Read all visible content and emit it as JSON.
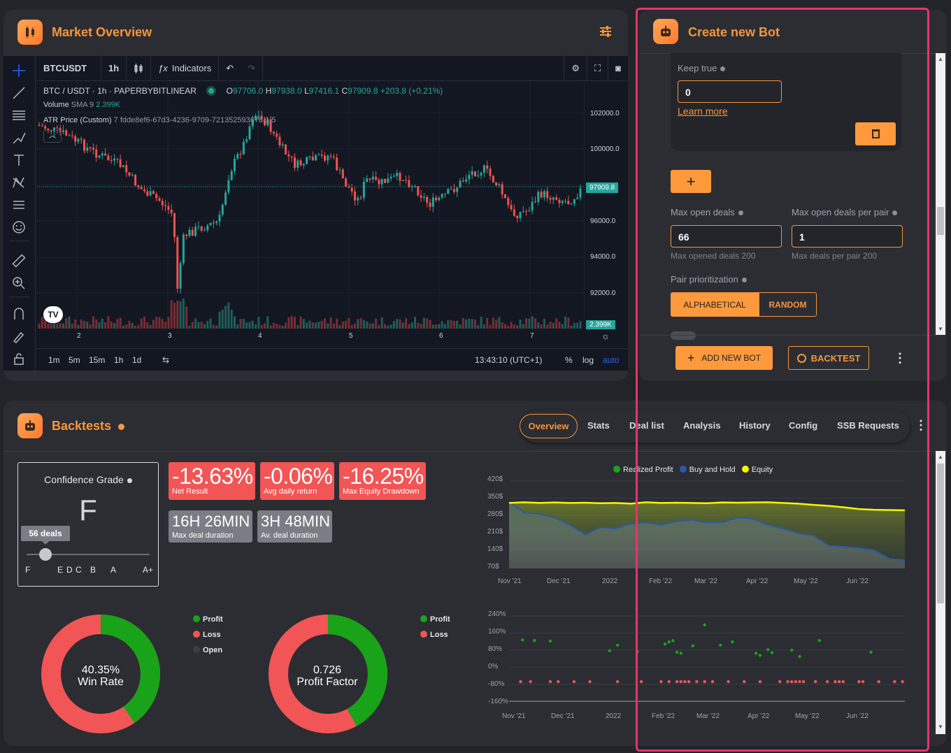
{
  "market": {
    "title": "Market Overview",
    "symbol": "BTCUSDT",
    "interval": "1h",
    "indicators": "Indicators",
    "legend_pair": "BTC / USDT · 1h · PAPERBYBITLINEAR",
    "o": "97706.0",
    "h": "97938.0",
    "l": "97416.1",
    "c": "97909.8",
    "chg": "+203.8 (+0.21%)",
    "volume_label": "Volume",
    "volume_ind": "SMA 9",
    "volume_val": "2.399K",
    "atr": "ATR Price (Custom)",
    "atr_params": "7 fdde8ef6-67d3-4236-9709-721352593678 1.5",
    "price_ticks": [
      "102000.0",
      "100000.0",
      "96000.0",
      "94000.0",
      "92000.0"
    ],
    "last_price": "97909.8",
    "vol_badge": "2.399K",
    "x_ticks": [
      "2",
      "3",
      "4",
      "5",
      "6",
      "7"
    ],
    "timeframes": [
      "1m",
      "5m",
      "15m",
      "1h",
      "1d"
    ],
    "clock": "13:43:10 (UTC+1)",
    "pct": "%",
    "log": "log",
    "auto": "auto"
  },
  "bot": {
    "title": "Create new Bot",
    "keep_true_label": "Keep true",
    "keep_true_value": "0",
    "learn_more": "Learn more",
    "max_open_deals_label": "Max open deals",
    "max_open_deals": "66",
    "max_opened_hint": "Max opened deals 200",
    "max_per_pair_label": "Max open deals per pair",
    "max_per_pair": "1",
    "max_pair_hint": "Max deals per pair 200",
    "pair_prio_label": "Pair prioritization",
    "prio_a": "ALPHABETICAL",
    "prio_b": "RANDOM",
    "add_new_bot": "ADD NEW BOT",
    "backtest": "BACKTEST",
    "plus": "+"
  },
  "backtests": {
    "title": "Backtests",
    "tabs": [
      "Overview",
      "Stats",
      "Deal list",
      "Analysis",
      "History",
      "Config",
      "SSB Requests"
    ],
    "confidence_title": "Confidence Grade",
    "grade": "F",
    "deals_badge": "56 deals",
    "grade_scale": [
      "F",
      "E",
      "D",
      "C",
      "B",
      "A",
      "A+"
    ],
    "net_result": "-13.63%",
    "net_result_label": "Net Result",
    "avg_daily": "-0.06%",
    "avg_daily_label": "Avg daily return",
    "max_dd": "-16.25%",
    "max_dd_label": "Max Equity Drawdown",
    "max_dur": "16H 26MIN",
    "max_dur_label": "Max deal duration",
    "av_dur": "3H 48MIN",
    "av_dur_label": "Av. deal duration",
    "win_rate": "40.35%",
    "win_rate_label": "Win Rate",
    "profit_factor": "0.726",
    "profit_factor_label": "Profit Factor",
    "legend1": [
      "Profit",
      "Loss",
      "Open"
    ],
    "legend2": [
      "Profit",
      "Loss"
    ]
  },
  "colors": {
    "accent": "#ff9a3c",
    "profit": "#18a318",
    "loss": "#f25555",
    "equity": "#f5f500",
    "buyhold": "#2a5aa8"
  },
  "chart_data": [
    {
      "type": "area",
      "legend": [
        "Realized Profit",
        "Buy and Hold",
        "Equity"
      ],
      "y_ticks": [
        "420$",
        "350$",
        "280$",
        "210$",
        "140$",
        "70$"
      ],
      "x_ticks": [
        "Nov '21",
        "Dec '21",
        "2022",
        "Feb '22",
        "Mar '22",
        "Apr '22",
        "May '22",
        "Jun '22"
      ],
      "ylim": [
        70,
        420
      ],
      "series": [
        {
          "name": "Equity",
          "values": [
            330,
            333,
            330,
            332,
            330,
            331,
            329,
            330,
            327,
            333,
            330,
            331,
            330,
            329,
            332,
            331,
            332,
            333,
            330,
            327,
            322,
            318,
            312,
            305,
            302,
            301,
            300
          ]
        },
        {
          "name": "Buy and Hold",
          "values": [
            335,
            290,
            285,
            270,
            240,
            200,
            230,
            225,
            245,
            250,
            240,
            255,
            260,
            250,
            250,
            270,
            265,
            240,
            225,
            205,
            195,
            155,
            150,
            145,
            135,
            100,
            95
          ]
        }
      ]
    },
    {
      "type": "scatter",
      "y_ticks": [
        "240%",
        "160%",
        "80%",
        "0%",
        "-80%",
        "-160%"
      ],
      "x_ticks": [
        "Nov '21",
        "Dec '21",
        "2022",
        "Feb '22",
        "Mar '22",
        "Apr '22",
        "May '22",
        "Jun '22"
      ],
      "ylim": [
        -160,
        240
      ],
      "profit_points": [
        [
          0.02,
          128
        ],
        [
          0.05,
          125
        ],
        [
          0.09,
          122
        ],
        [
          0.24,
          77
        ],
        [
          0.26,
          103
        ],
        [
          0.31,
          73
        ],
        [
          0.38,
          108
        ],
        [
          0.39,
          118
        ],
        [
          0.4,
          124
        ],
        [
          0.41,
          70
        ],
        [
          0.42,
          65
        ],
        [
          0.45,
          100
        ],
        [
          0.48,
          198
        ],
        [
          0.52,
          103
        ],
        [
          0.55,
          118
        ],
        [
          0.61,
          65
        ],
        [
          0.62,
          55
        ],
        [
          0.64,
          82
        ],
        [
          0.65,
          68
        ],
        [
          0.7,
          80
        ],
        [
          0.72,
          50
        ],
        [
          0.77,
          125
        ],
        [
          0.9,
          70
        ]
      ]
    }
  ]
}
